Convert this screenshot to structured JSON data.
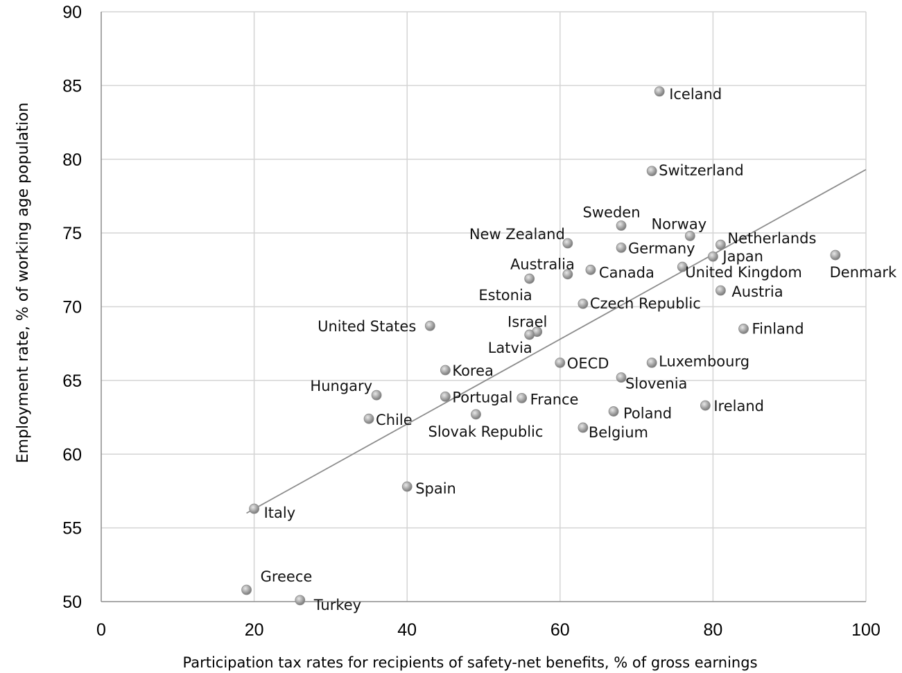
{
  "chart_data": {
    "type": "scatter",
    "title": "",
    "xlabel": "Participation tax rates for recipients of safety-net benefits, % of gross earnings",
    "ylabel": "Employment rate, % of working age population",
    "xlim": [
      0,
      100
    ],
    "ylim": [
      50,
      90
    ],
    "xticks": [
      0,
      20,
      40,
      60,
      80,
      100
    ],
    "yticks": [
      50,
      55,
      60,
      65,
      70,
      75,
      80,
      85,
      90
    ],
    "grid": true,
    "trendline": {
      "x1": 19,
      "y1": 56.0,
      "x2": 100,
      "y2": 79.3
    },
    "marker_color": "#a6a6a6",
    "trendline_color": "#8c8c8c",
    "points": [
      {
        "label": "Iceland",
        "x": 73,
        "y": 84.6
      },
      {
        "label": "Switzerland",
        "x": 72,
        "y": 79.2
      },
      {
        "label": "Sweden",
        "x": 68,
        "y": 75.5
      },
      {
        "label": "Norway",
        "x": 77,
        "y": 74.8
      },
      {
        "label": "New Zealand",
        "x": 61,
        "y": 74.3
      },
      {
        "label": "Netherlands",
        "x": 81,
        "y": 74.2
      },
      {
        "label": "Germany",
        "x": 68,
        "y": 74.0
      },
      {
        "label": "Denmark",
        "x": 96,
        "y": 73.5
      },
      {
        "label": "Japan",
        "x": 80,
        "y": 73.4
      },
      {
        "label": "United Kingdom",
        "x": 76,
        "y": 72.7
      },
      {
        "label": "Canada",
        "x": 64,
        "y": 72.5
      },
      {
        "label": "Australia",
        "x": 61,
        "y": 72.2
      },
      {
        "label": "Estonia",
        "x": 56,
        "y": 71.9
      },
      {
        "label": "Austria",
        "x": 81,
        "y": 71.1
      },
      {
        "label": "Czech Republic",
        "x": 63,
        "y": 70.2
      },
      {
        "label": "United States",
        "x": 43,
        "y": 68.7
      },
      {
        "label": "Finland",
        "x": 84,
        "y": 68.5
      },
      {
        "label": "Israel",
        "x": 57,
        "y": 68.3
      },
      {
        "label": "Latvia",
        "x": 56,
        "y": 68.1
      },
      {
        "label": "OECD",
        "x": 60,
        "y": 66.2
      },
      {
        "label": "Luxembourg",
        "x": 72,
        "y": 66.2
      },
      {
        "label": "Korea",
        "x": 45,
        "y": 65.7
      },
      {
        "label": "Slovenia",
        "x": 68,
        "y": 65.2
      },
      {
        "label": "Hungary",
        "x": 36,
        "y": 64.0
      },
      {
        "label": "Portugal",
        "x": 45,
        "y": 63.9
      },
      {
        "label": "France",
        "x": 55,
        "y": 63.8
      },
      {
        "label": "Ireland",
        "x": 79,
        "y": 63.3
      },
      {
        "label": "Poland",
        "x": 67,
        "y": 62.9
      },
      {
        "label": "Slovak Republic",
        "x": 49,
        "y": 62.7
      },
      {
        "label": "Chile",
        "x": 35,
        "y": 62.4
      },
      {
        "label": "Belgium",
        "x": 63,
        "y": 61.8
      },
      {
        "label": "Spain",
        "x": 40,
        "y": 57.8
      },
      {
        "label": "Italy",
        "x": 20,
        "y": 56.3
      },
      {
        "label": "Greece",
        "x": 19,
        "y": 50.8
      },
      {
        "label": "Turkey",
        "x": 26,
        "y": 50.1
      }
    ]
  }
}
